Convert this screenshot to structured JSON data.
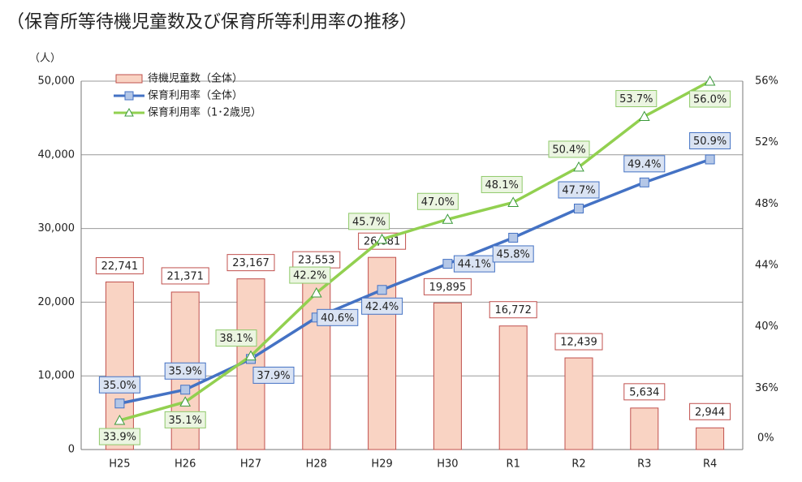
{
  "chart_data": {
    "type": "bar_line",
    "title": "（保育所等待機児童数及び保育所等利用率の推移）",
    "y_unit_label": "（人）",
    "categories": [
      "H25",
      "H26",
      "H27",
      "H28",
      "H29",
      "H30",
      "R1",
      "R2",
      "R3",
      "R4"
    ],
    "series": [
      {
        "name": "待機児童数（全体）",
        "color": "#f9d3c3",
        "border": "#c0504d",
        "kind": "bar",
        "values": [
          22741,
          21371,
          23167,
          23553,
          26081,
          19895,
          16772,
          12439,
          5634,
          2944
        ],
        "value_labels": [
          "22,741",
          "21,371",
          "23,167",
          "23,553",
          "26,081",
          "19,895",
          "16,772",
          "12,439",
          "5,634",
          "2,944"
        ]
      },
      {
        "name": "保育利用率（全体）",
        "color": "#4472c4",
        "kind": "line",
        "marker": "square",
        "axis": "y2",
        "values": [
          35.0,
          35.9,
          37.9,
          40.6,
          42.4,
          44.1,
          45.8,
          47.7,
          49.4,
          50.9
        ],
        "value_labels": [
          "35.0%",
          "35.9%",
          "37.9%",
          "40.6%",
          "42.4%",
          "44.1%",
          "45.8%",
          "47.7%",
          "49.4%",
          "50.9%"
        ]
      },
      {
        "name": "保育利用率（1･2歳児）",
        "color": "#92d050",
        "kind": "line",
        "marker": "triangle",
        "axis": "y2",
        "values": [
          33.9,
          35.1,
          38.1,
          42.2,
          45.7,
          47.0,
          48.1,
          50.4,
          53.7,
          56.0
        ],
        "value_labels": [
          "33.9%",
          "35.1%",
          "38.1%",
          "42.2%",
          "45.7%",
          "47.0%",
          "48.1%",
          "50.4%",
          "53.7%",
          "56.0%"
        ]
      }
    ],
    "ylim": [
      0,
      50000
    ],
    "yticks": [
      0,
      {
        "value": 10000,
        "label": "10,000"
      },
      {
        "value": 20000,
        "label": "20,000"
      },
      {
        "value": 30000,
        "label": "30,000"
      },
      {
        "value": 40000,
        "label": "40,000"
      },
      {
        "value": 50000,
        "label": "50,000"
      }
    ],
    "y2lim": [
      32,
      56
    ],
    "y2ticks": [
      {
        "value": 36,
        "label": "36%"
      },
      {
        "value": 40,
        "label": "40%"
      },
      {
        "value": 44,
        "label": "44%"
      },
      {
        "value": 48,
        "label": "48%"
      },
      {
        "value": 52,
        "label": "52%"
      },
      {
        "value": 56,
        "label": "56%"
      }
    ],
    "y2_origin_label": "0%",
    "grid": true,
    "legend": "upper left"
  }
}
